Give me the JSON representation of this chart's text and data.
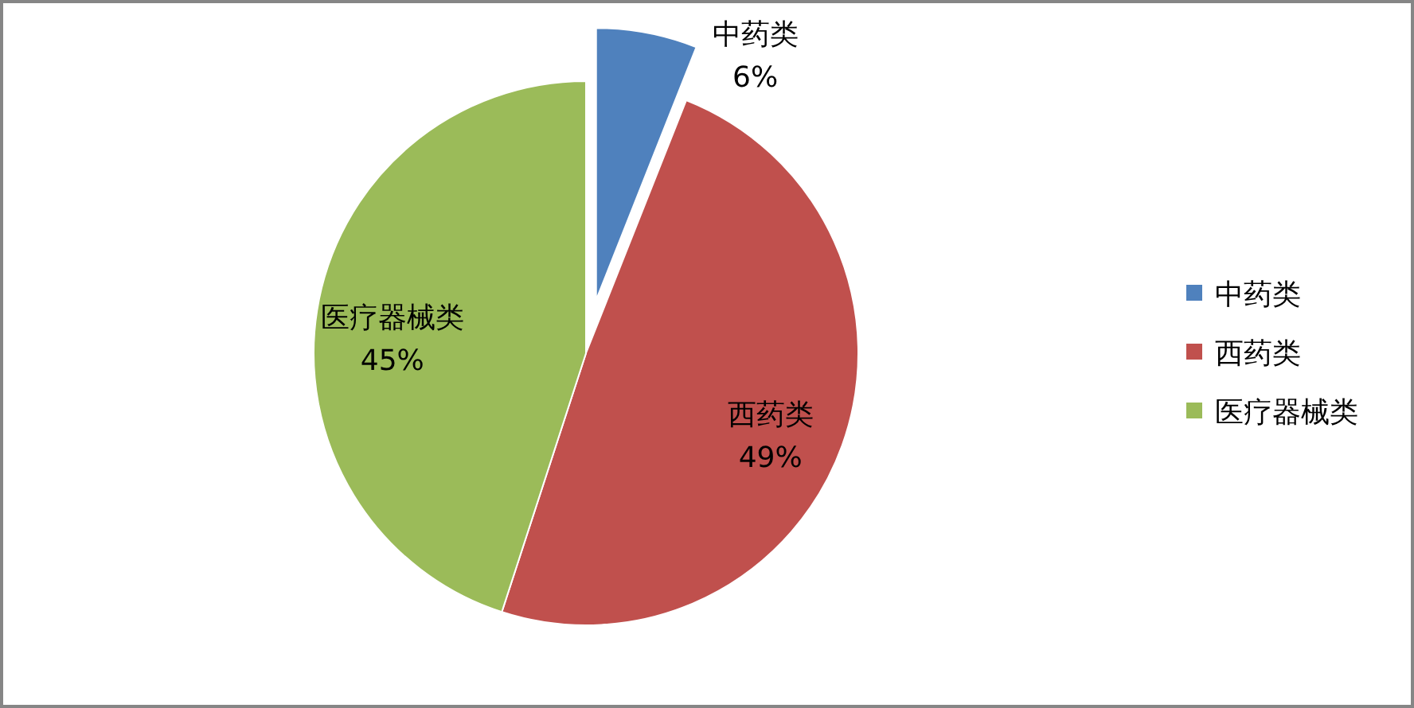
{
  "chart_data": {
    "type": "pie",
    "categories": [
      "中药类",
      "西药类",
      "医疗器械类"
    ],
    "values": [
      6,
      49,
      45
    ],
    "colors": [
      "#4f81bd",
      "#c0504d",
      "#9bbb59"
    ],
    "value_labels": [
      "6%",
      "49%",
      "45%"
    ],
    "legend": "right"
  }
}
